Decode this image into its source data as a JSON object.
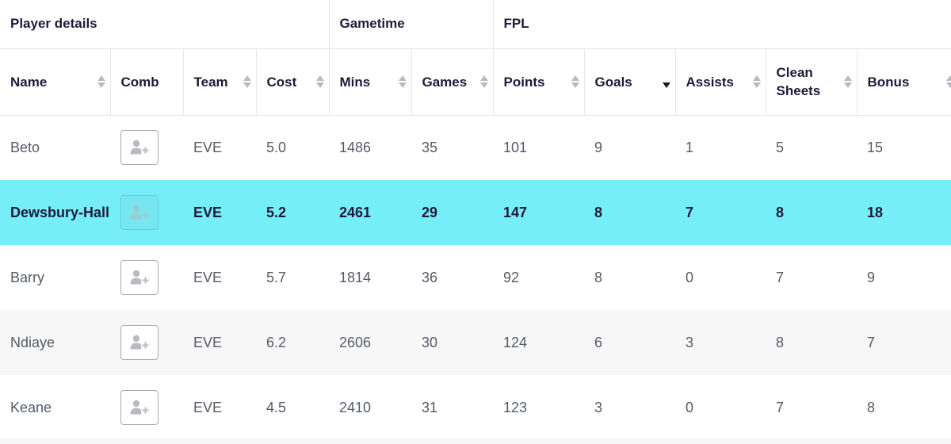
{
  "groups": {
    "player_details": "Player details",
    "gametime": "Gametime",
    "fpl": "FPL"
  },
  "columns": {
    "name": "Name",
    "comb": "Comb",
    "team": "Team",
    "cost": "Cost",
    "mins": "Mins",
    "games": "Games",
    "points": "Points",
    "goals": "Goals",
    "assists": "Assists",
    "clean_sheets": "Clean Sheets",
    "bonus": "Bonus"
  },
  "sort": {
    "active_column": "goals",
    "direction": "descending"
  },
  "comb_icon": "add-user-icon",
  "colors": {
    "highlight_row": "#76eef8",
    "alt_row": "#f7f7f8",
    "text_dark": "#1f1a3a",
    "text_muted": "#555a66"
  },
  "rows": [
    {
      "name": "Beto",
      "team": "EVE",
      "cost": "5.0",
      "mins": "1486",
      "games": "35",
      "points": "101",
      "goals": "9",
      "assists": "1",
      "clean_sheets": "5",
      "bonus": "15"
    },
    {
      "name": "Dewsbury-Hall",
      "team": "EVE",
      "cost": "5.2",
      "mins": "2461",
      "games": "29",
      "points": "147",
      "goals": "8",
      "assists": "7",
      "clean_sheets": "8",
      "bonus": "18"
    },
    {
      "name": "Barry",
      "team": "EVE",
      "cost": "5.7",
      "mins": "1814",
      "games": "36",
      "points": "92",
      "goals": "8",
      "assists": "0",
      "clean_sheets": "7",
      "bonus": "9"
    },
    {
      "name": "Ndiaye",
      "team": "EVE",
      "cost": "6.2",
      "mins": "2606",
      "games": "30",
      "points": "124",
      "goals": "6",
      "assists": "3",
      "clean_sheets": "8",
      "bonus": "7"
    },
    {
      "name": "Keane",
      "team": "EVE",
      "cost": "4.5",
      "mins": "2410",
      "games": "31",
      "points": "123",
      "goals": "3",
      "assists": "0",
      "clean_sheets": "7",
      "bonus": "8"
    }
  ]
}
